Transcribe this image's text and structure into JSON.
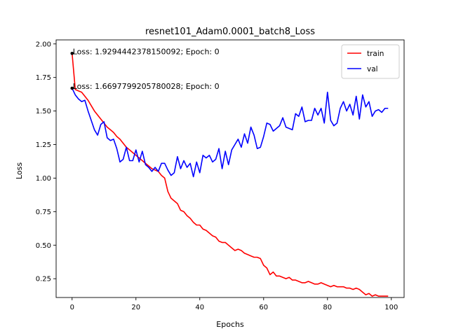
{
  "chart_data": {
    "type": "line",
    "title": "resnet101_Adam0.0001_batch8_Loss",
    "xlabel": "Epochs",
    "ylabel": "Loss",
    "xlim": [
      -5,
      104
    ],
    "ylim": [
      0.11,
      2.03
    ],
    "xticks": [
      0,
      20,
      40,
      60,
      80,
      100
    ],
    "yticks": [
      0.25,
      0.5,
      0.75,
      1.0,
      1.25,
      1.5,
      1.75,
      2.0
    ],
    "xtick_labels": [
      "0",
      "20",
      "40",
      "60",
      "80",
      "100"
    ],
    "ytick_labels": [
      "0.25",
      "0.50",
      "0.75",
      "1.00",
      "1.25",
      "1.50",
      "1.75",
      "2.00"
    ],
    "grid": false,
    "legend_position": "top-right",
    "series": [
      {
        "name": "train",
        "color": "#ff0000",
        "x": [
          0,
          1,
          2,
          3,
          4,
          5,
          6,
          7,
          8,
          9,
          10,
          11,
          12,
          13,
          14,
          15,
          16,
          17,
          18,
          19,
          20,
          21,
          22,
          23,
          24,
          25,
          26,
          27,
          28,
          29,
          30,
          31,
          32,
          33,
          34,
          35,
          36,
          37,
          38,
          39,
          40,
          41,
          42,
          43,
          44,
          45,
          46,
          47,
          48,
          49,
          50,
          51,
          52,
          53,
          54,
          55,
          56,
          57,
          58,
          59,
          60,
          61,
          62,
          63,
          64,
          65,
          66,
          67,
          68,
          69,
          70,
          71,
          72,
          73,
          74,
          75,
          76,
          77,
          78,
          79,
          80,
          81,
          82,
          83,
          84,
          85,
          86,
          87,
          88,
          89,
          90,
          91,
          92,
          93,
          94,
          95,
          96,
          97,
          98,
          99
        ],
        "values": [
          1.93,
          1.66,
          1.65,
          1.64,
          1.61,
          1.58,
          1.54,
          1.5,
          1.47,
          1.44,
          1.41,
          1.38,
          1.36,
          1.34,
          1.31,
          1.29,
          1.26,
          1.23,
          1.21,
          1.19,
          1.17,
          1.15,
          1.13,
          1.11,
          1.09,
          1.07,
          1.06,
          1.05,
          1.02,
          1.0,
          0.9,
          0.85,
          0.83,
          0.81,
          0.76,
          0.75,
          0.72,
          0.7,
          0.67,
          0.65,
          0.65,
          0.62,
          0.61,
          0.59,
          0.57,
          0.56,
          0.53,
          0.52,
          0.52,
          0.5,
          0.48,
          0.46,
          0.47,
          0.46,
          0.44,
          0.43,
          0.42,
          0.41,
          0.41,
          0.4,
          0.35,
          0.33,
          0.28,
          0.3,
          0.27,
          0.27,
          0.26,
          0.25,
          0.26,
          0.24,
          0.24,
          0.23,
          0.22,
          0.22,
          0.23,
          0.22,
          0.21,
          0.21,
          0.22,
          0.21,
          0.2,
          0.19,
          0.2,
          0.19,
          0.19,
          0.19,
          0.18,
          0.18,
          0.17,
          0.18,
          0.17,
          0.15,
          0.13,
          0.14,
          0.12,
          0.13,
          0.12,
          0.12,
          0.12,
          0.12
        ]
      },
      {
        "name": "val",
        "color": "#0000ff",
        "x": [
          0,
          1,
          2,
          3,
          4,
          5,
          6,
          7,
          8,
          9,
          10,
          11,
          12,
          13,
          14,
          15,
          16,
          17,
          18,
          19,
          20,
          21,
          22,
          23,
          24,
          25,
          26,
          27,
          28,
          29,
          30,
          31,
          32,
          33,
          34,
          35,
          36,
          37,
          38,
          39,
          40,
          41,
          42,
          43,
          44,
          45,
          46,
          47,
          48,
          49,
          50,
          51,
          52,
          53,
          54,
          55,
          56,
          57,
          58,
          59,
          60,
          61,
          62,
          63,
          64,
          65,
          66,
          67,
          68,
          69,
          70,
          71,
          72,
          73,
          74,
          75,
          76,
          77,
          78,
          79,
          80,
          81,
          82,
          83,
          84,
          85,
          86,
          87,
          88,
          89,
          90,
          91,
          92,
          93,
          94,
          95,
          96,
          97,
          98,
          99
        ],
        "values": [
          1.67,
          1.62,
          1.59,
          1.57,
          1.58,
          1.5,
          1.43,
          1.36,
          1.32,
          1.4,
          1.42,
          1.3,
          1.28,
          1.29,
          1.22,
          1.12,
          1.14,
          1.23,
          1.13,
          1.13,
          1.21,
          1.12,
          1.2,
          1.1,
          1.08,
          1.05,
          1.08,
          1.05,
          1.11,
          1.11,
          1.06,
          1.02,
          1.04,
          1.16,
          1.07,
          1.13,
          1.08,
          1.11,
          1.01,
          1.12,
          1.04,
          1.17,
          1.15,
          1.17,
          1.12,
          1.14,
          1.22,
          1.07,
          1.2,
          1.1,
          1.21,
          1.25,
          1.29,
          1.23,
          1.33,
          1.26,
          1.38,
          1.32,
          1.22,
          1.23,
          1.31,
          1.41,
          1.4,
          1.35,
          1.37,
          1.39,
          1.45,
          1.38,
          1.37,
          1.36,
          1.48,
          1.46,
          1.53,
          1.42,
          1.43,
          1.43,
          1.52,
          1.47,
          1.52,
          1.41,
          1.64,
          1.43,
          1.39,
          1.41,
          1.52,
          1.57,
          1.5,
          1.55,
          1.47,
          1.61,
          1.44,
          1.62,
          1.53,
          1.57,
          1.46,
          1.5,
          1.51,
          1.49,
          1.52,
          1.52
        ]
      }
    ],
    "annotations": [
      {
        "x": 0,
        "y": 1.9294442378150092,
        "text": "Loss: 1.9294442378150092; Epoch: 0"
      },
      {
        "x": 0,
        "y": 1.6697799205780028,
        "text": "Loss: 1.6697799205780028; Epoch: 0"
      }
    ]
  }
}
